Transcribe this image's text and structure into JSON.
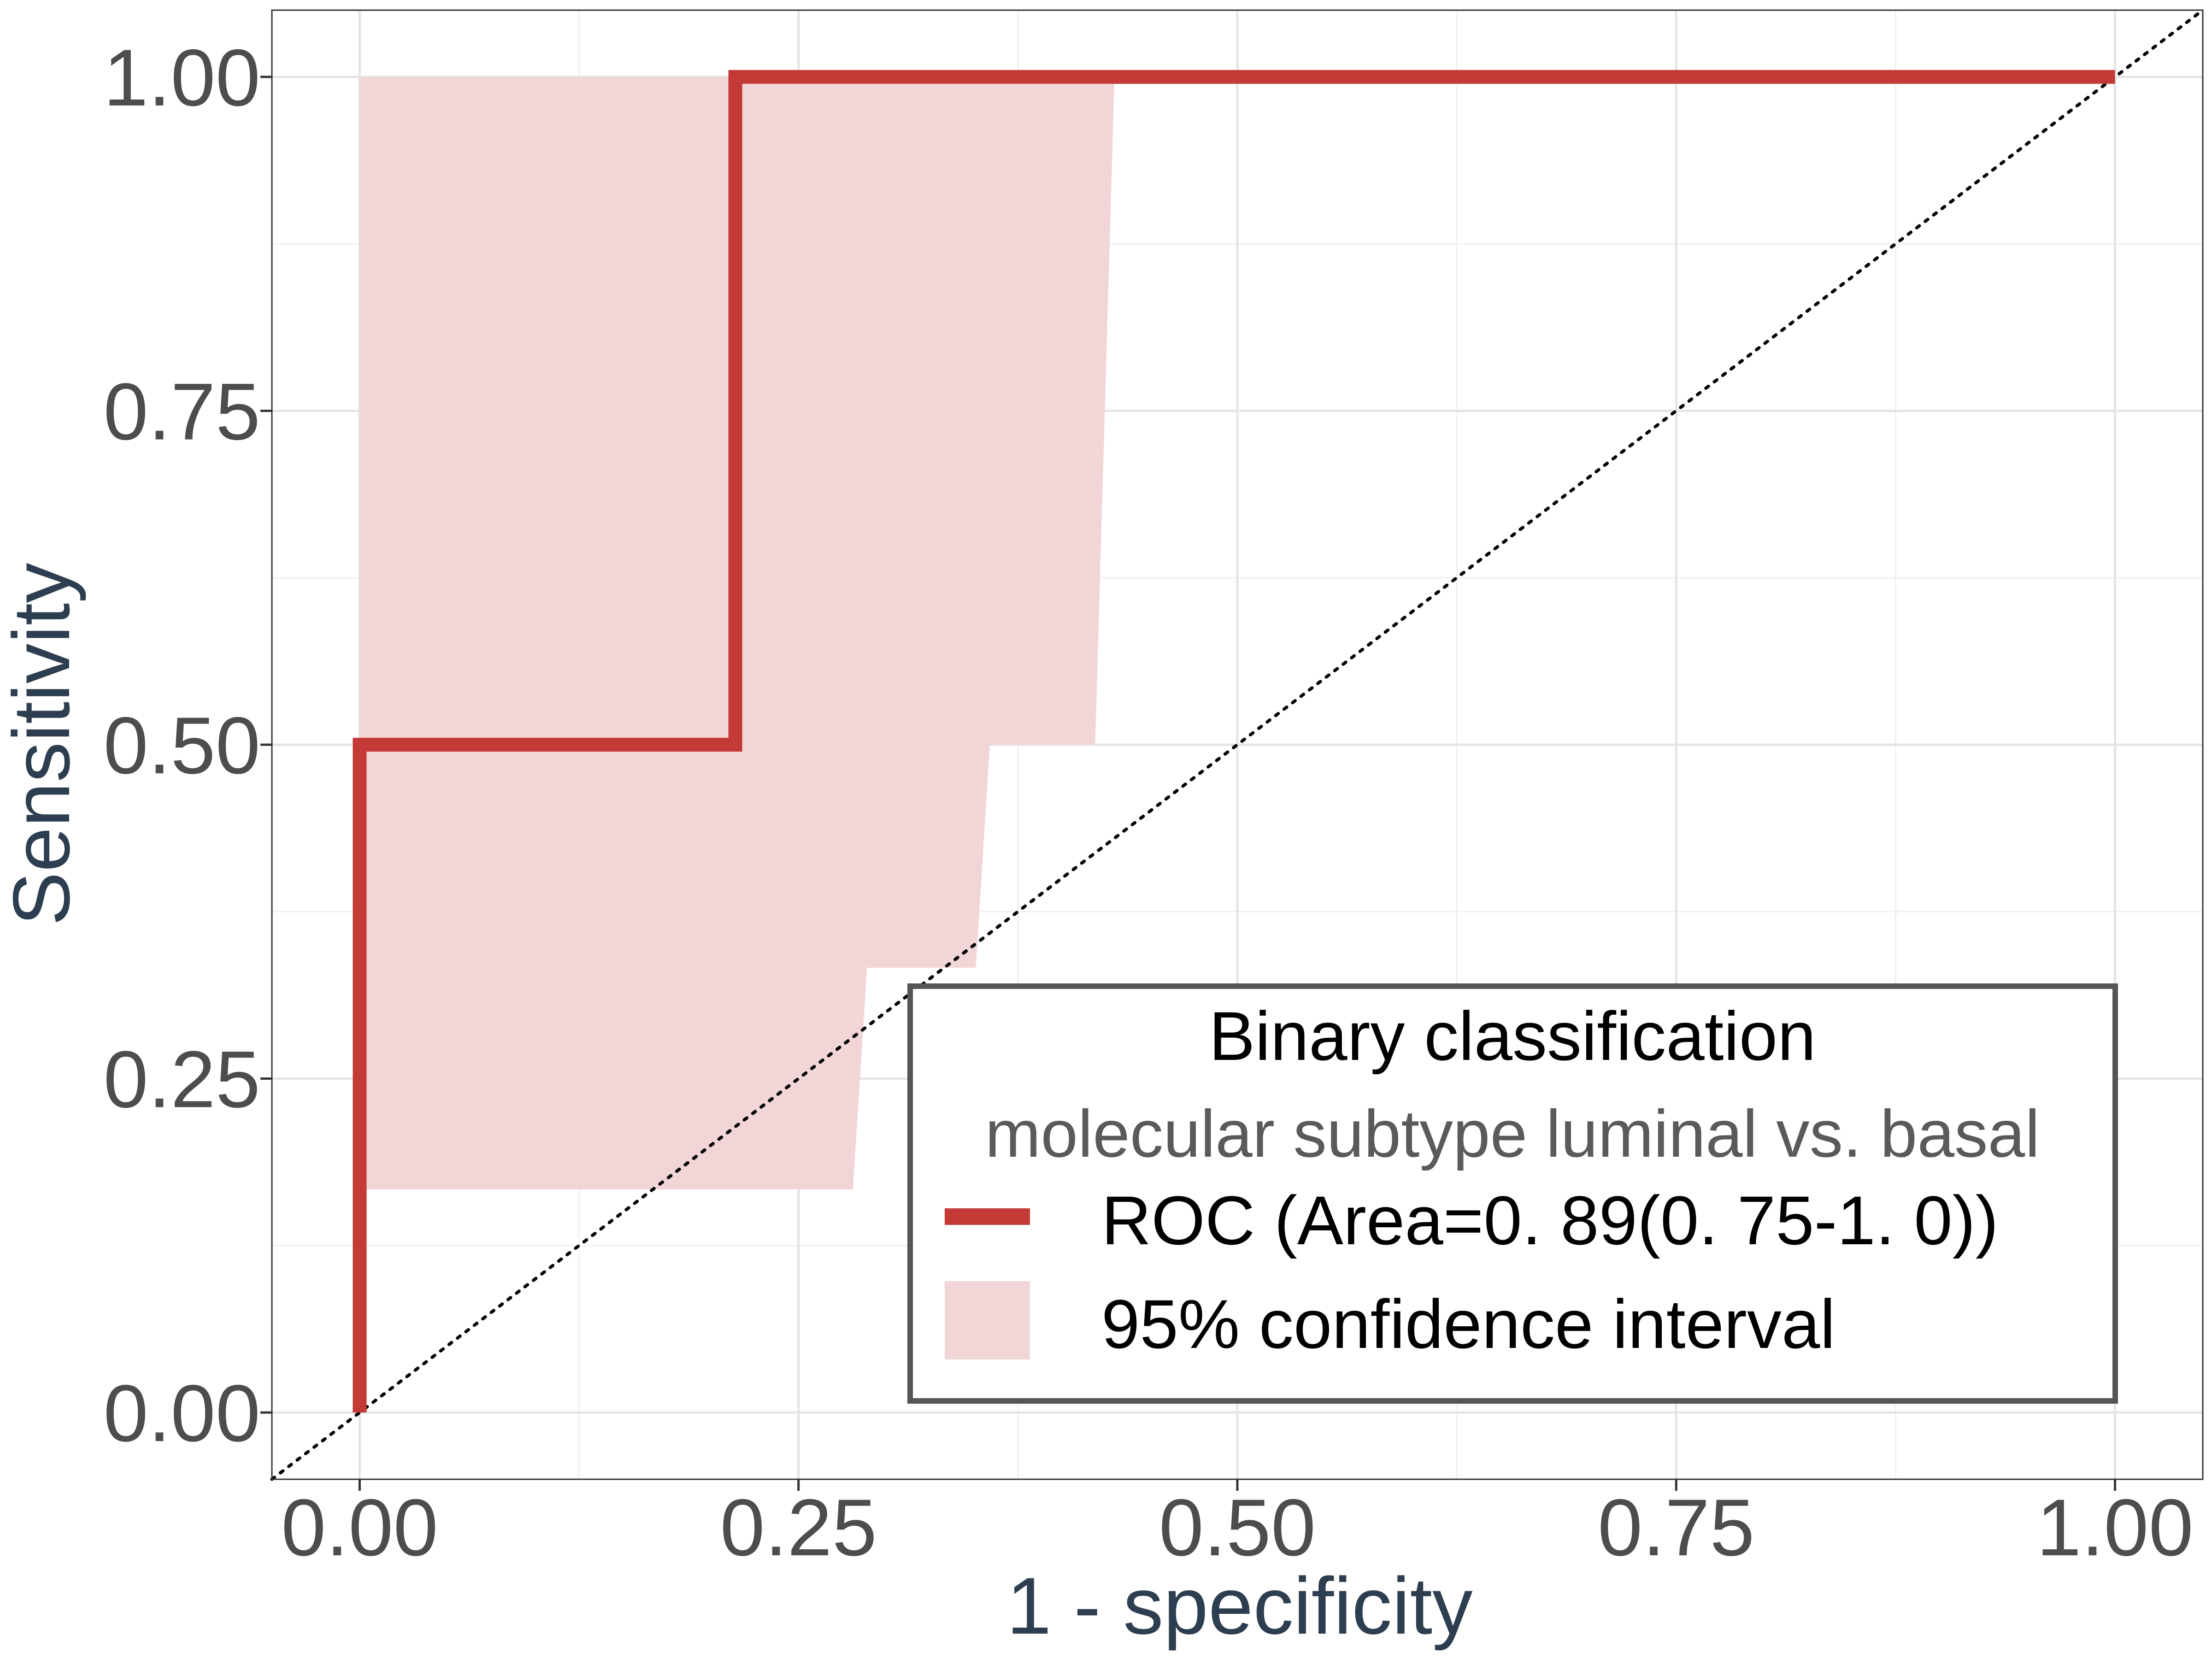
{
  "chart_data": {
    "type": "line",
    "xlabel": "1 - specificity",
    "ylabel": "Sensitivity",
    "xlim": [
      -0.05,
      1.05
    ],
    "ylim": [
      -0.05,
      1.05
    ],
    "x_ticks": [
      "0.00",
      "0.25",
      "0.50",
      "0.75",
      "1.00"
    ],
    "y_ticks": [
      "0.00",
      "0.25",
      "0.50",
      "0.75",
      "1.00"
    ],
    "x_tick_values": [
      0,
      0.25,
      0.5,
      0.75,
      1.0
    ],
    "y_tick_values": [
      0,
      0.25,
      0.5,
      0.75,
      1.0
    ],
    "grid": true,
    "series": [
      {
        "name": "ROC (Area=0. 89(0. 75-1. 0))",
        "color": "#c43a37",
        "x": [
          0.0,
          0.0,
          0.214,
          0.214,
          1.0
        ],
        "y": [
          0.0,
          0.5,
          0.5,
          1.0,
          1.0
        ]
      }
    ],
    "confidence_band": {
      "name": "95% confidence interval",
      "color": "#f2d5d7",
      "upper": {
        "x": [
          0.0,
          0.43
        ],
        "y": [
          1.0,
          1.0
        ]
      },
      "lower_path": [
        [
          0.0,
          0.167
        ],
        [
          0.281,
          0.167
        ],
        [
          0.289,
          0.333
        ],
        [
          0.351,
          0.333
        ],
        [
          0.359,
          0.5
        ],
        [
          0.419,
          0.5
        ],
        [
          0.43,
          1.0
        ]
      ]
    },
    "reference_line": {
      "style": "dotted",
      "color": "#000000",
      "x": [
        -0.05,
        1.05
      ],
      "y": [
        -0.05,
        1.05
      ]
    },
    "legend": {
      "placement": "bottom-right",
      "title": "Binary classification",
      "subtitle": "molecular subtype luminal vs. basal",
      "entries": [
        "ROC (Area=0. 89(0. 75-1. 0))",
        "95% confidence interval"
      ]
    }
  }
}
